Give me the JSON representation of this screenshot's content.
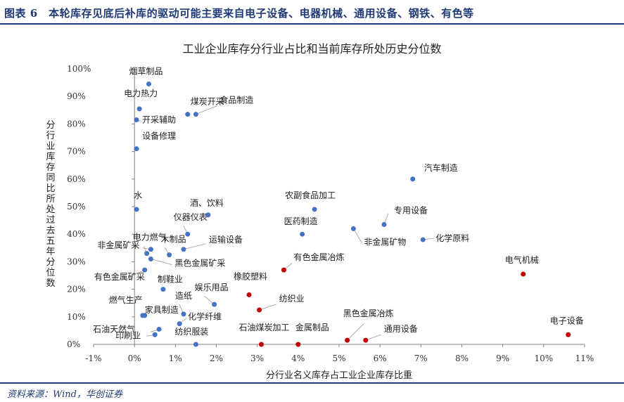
{
  "figure_title": "图表 6　本轮库存见底后补库的驱动可能主要来自电子设备、电器机械、通用设备、钢铁、有色等",
  "source": "资料来源：Wind，华创证券",
  "colors": {
    "blue": "#4472c4",
    "red": "#c00000",
    "brand": "#1f3a75"
  },
  "chart_data": {
    "type": "scatter",
    "title": "工业企业库存分行业占比和当前库存所处历史分位数",
    "xlabel": "分行业名义库存占工业企业库存比重",
    "ylabel": "分行业库存同比所处过去五年分位数",
    "xlim": [
      -1,
      11
    ],
    "ylim": [
      0,
      100
    ],
    "x_ticks": [
      "-1%",
      "0%",
      "1%",
      "2%",
      "3%",
      "4%",
      "5%",
      "6%",
      "7%",
      "8%",
      "9%",
      "10%",
      "11%"
    ],
    "y_ticks": [
      "0%",
      "10%",
      "20%",
      "30%",
      "40%",
      "50%",
      "60%",
      "70%",
      "80%",
      "90%",
      "100%"
    ],
    "grid": false,
    "points": [
      {
        "label": "烟草制品",
        "x": 0.35,
        "y": 94.5,
        "color": "blue"
      },
      {
        "label": "电力热力",
        "x": 0.12,
        "y": 85.5,
        "color": "blue"
      },
      {
        "label": "开采辅助",
        "x": 0.05,
        "y": 81.5,
        "color": "blue"
      },
      {
        "label": "煤炭开采",
        "x": 1.3,
        "y": 83.5,
        "color": "blue"
      },
      {
        "label": "食品制造",
        "x": 1.5,
        "y": 83.5,
        "color": "blue"
      },
      {
        "label": "设备修理",
        "x": 0.05,
        "y": 71,
        "color": "blue"
      },
      {
        "label": "汽车制造",
        "x": 6.8,
        "y": 60,
        "color": "blue"
      },
      {
        "label": "水",
        "x": 0.05,
        "y": 49,
        "color": "blue"
      },
      {
        "label": "酒、饮料",
        "x": 1.8,
        "y": 47,
        "color": "blue"
      },
      {
        "label": "农副食品加工",
        "x": 4.4,
        "y": 49,
        "color": "blue"
      },
      {
        "label": "专用设备",
        "x": 6.1,
        "y": 43.5,
        "color": "blue"
      },
      {
        "label": "电力燃气",
        "x": 0.3,
        "y": 33,
        "color": "blue"
      },
      {
        "label": "仪器仪表",
        "x": 1.3,
        "y": 40,
        "color": "blue"
      },
      {
        "label": "医药制造",
        "x": 4.1,
        "y": 40,
        "color": "blue"
      },
      {
        "label": "非金属矿物",
        "x": 5.35,
        "y": 42,
        "color": "blue"
      },
      {
        "label": "化学原料",
        "x": 7.05,
        "y": 38,
        "color": "blue"
      },
      {
        "label": "木制品",
        "x": 0.85,
        "y": 32.5,
        "color": "blue"
      },
      {
        "label": "运输设备",
        "x": 1.2,
        "y": 34.5,
        "color": "blue"
      },
      {
        "label": "非金属矿采",
        "x": 0.4,
        "y": 34.5,
        "color": "blue"
      },
      {
        "label": "黑色金属矿采",
        "x": 0.4,
        "y": 31,
        "color": "blue"
      },
      {
        "label": "有色金属冶炼",
        "x": 3.65,
        "y": 27,
        "color": "red"
      },
      {
        "label": "有色金属矿采",
        "x": 0.25,
        "y": 27,
        "color": "blue"
      },
      {
        "label": "电气机械",
        "x": 9.5,
        "y": 25.5,
        "color": "red"
      },
      {
        "label": "橡胶塑料",
        "x": 2.8,
        "y": 18,
        "color": "red"
      },
      {
        "label": "制鞋业",
        "x": 0.7,
        "y": 20,
        "color": "blue"
      },
      {
        "label": "娱乐用品",
        "x": 1.95,
        "y": 14.5,
        "color": "blue"
      },
      {
        "label": "纺织业",
        "x": 3.05,
        "y": 12.5,
        "color": "red"
      },
      {
        "label": "燃气生产",
        "x": 0.2,
        "y": 10.5,
        "color": "blue"
      },
      {
        "label": "造纸",
        "x": 1.2,
        "y": 11,
        "color": "blue"
      },
      {
        "label": "家具制造",
        "x": 0.25,
        "y": 10.5,
        "color": "blue"
      },
      {
        "label": "化学纤维",
        "x": 1.1,
        "y": 7.5,
        "color": "blue"
      },
      {
        "label": "石油天然气",
        "x": 0.6,
        "y": 5.5,
        "color": "blue"
      },
      {
        "label": "印刷业",
        "x": 0.5,
        "y": 3.5,
        "color": "blue"
      },
      {
        "label": "纺织服装",
        "x": 1.5,
        "y": 0,
        "color": "blue"
      },
      {
        "label": "石油煤炭加工",
        "x": 3.1,
        "y": 0,
        "color": "red"
      },
      {
        "label": "金属制品",
        "x": 4.0,
        "y": 0,
        "color": "red"
      },
      {
        "label": "黑色金属冶炼",
        "x": 5.2,
        "y": 1.5,
        "color": "red"
      },
      {
        "label": "通用设备",
        "x": 5.65,
        "y": 1.5,
        "color": "red"
      },
      {
        "label": "电子设备",
        "x": 10.6,
        "y": 3.5,
        "color": "red"
      }
    ]
  }
}
